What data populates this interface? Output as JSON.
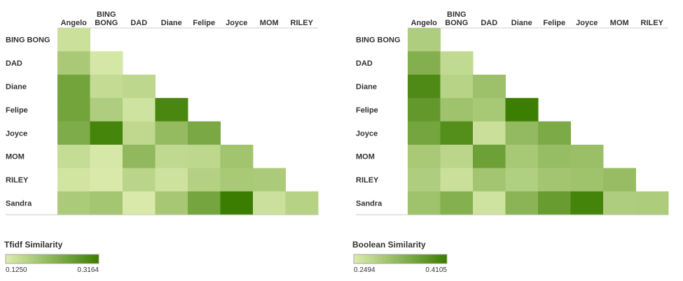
{
  "chart_data": [
    {
      "type": "heatmap",
      "rows": [
        "BING BONG",
        "DAD",
        "Diane",
        "Felipe",
        "Joyce",
        "MOM",
        "RILEY",
        "Sandra"
      ],
      "columns": [
        "Angelo",
        "BING BONG",
        "DAD",
        "Diane",
        "Felipe",
        "Joyce",
        "MOM",
        "RILEY"
      ],
      "values": [
        [
          0.146
        ],
        [
          0.186,
          0.133
        ],
        [
          0.25,
          0.155,
          0.162
        ],
        [
          0.25,
          0.178,
          0.14,
          0.299
        ],
        [
          0.235,
          0.303,
          0.16,
          0.21,
          0.242
        ],
        [
          0.152,
          0.132,
          0.214,
          0.158,
          0.162,
          0.194
        ],
        [
          0.138,
          0.13,
          0.166,
          0.142,
          0.172,
          0.186,
          0.182
        ],
        [
          0.182,
          0.192,
          0.13,
          0.188,
          0.248,
          0.316,
          0.145,
          0.17
        ]
      ],
      "legend": {
        "title": "Tfidf Similarity",
        "min_label": "0.1250",
        "max_label": "0.3164",
        "min": 0.125,
        "max": 0.3164
      }
    },
    {
      "type": "heatmap",
      "rows": [
        "BING BONG",
        "DAD",
        "Diane",
        "Felipe",
        "Joyce",
        "MOM",
        "RILEY",
        "Sandra"
      ],
      "columns": [
        "Angelo",
        "BING BONG",
        "DAD",
        "Diane",
        "Felipe",
        "Joyce",
        "MOM",
        "RILEY"
      ],
      "values": [
        [
          0.294
        ],
        [
          0.338,
          0.276
        ],
        [
          0.391,
          0.286,
          0.312
        ],
        [
          0.37,
          0.31,
          0.302,
          0.409
        ],
        [
          0.352,
          0.385,
          0.268,
          0.322,
          0.345
        ],
        [
          0.3,
          0.282,
          0.36,
          0.302,
          0.318,
          0.315
        ],
        [
          0.294,
          0.268,
          0.306,
          0.292,
          0.306,
          0.31,
          0.318
        ],
        [
          0.31,
          0.336,
          0.262,
          0.33,
          0.365,
          0.4,
          0.294,
          0.296
        ]
      ],
      "legend": {
        "title": "Boolean Similarity",
        "min_label": "0.2494",
        "max_label": "0.4105",
        "min": 0.2494,
        "max": 0.4105
      }
    }
  ],
  "colors": {
    "low": "#dcecae",
    "high": "#3b7d00",
    "grid_line": "#cccccc",
    "text": "#333333"
  }
}
